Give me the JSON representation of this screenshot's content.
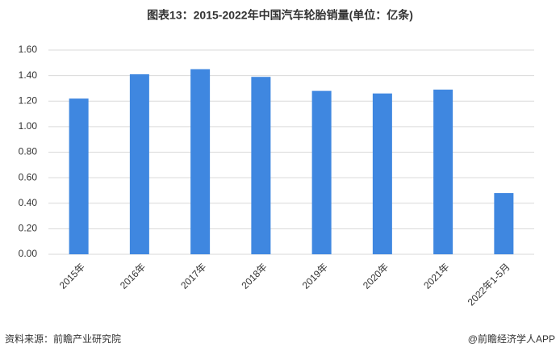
{
  "chart_data": {
    "type": "bar",
    "title": "图表13：2015-2022年中国汽车轮胎销量(单位：亿条)",
    "categories": [
      "2015年",
      "2016年",
      "2017年",
      "2018年",
      "2019年",
      "2020年",
      "2021年",
      "2022年1-5月"
    ],
    "values": [
      1.22,
      1.41,
      1.45,
      1.39,
      1.28,
      1.26,
      1.29,
      0.48
    ],
    "color": "#3f87e0",
    "ylim": [
      0,
      1.6
    ],
    "yticks": [
      {
        "value": 0,
        "label": "0.00"
      },
      {
        "value": 0.2,
        "label": "0.20"
      },
      {
        "value": 0.4,
        "label": "0.40"
      },
      {
        "value": 0.6,
        "label": "0.60"
      },
      {
        "value": 0.8,
        "label": "0.80"
      },
      {
        "value": 1.0,
        "label": "1.00"
      },
      {
        "value": 1.2,
        "label": "1.20"
      },
      {
        "value": 1.4,
        "label": "1.40"
      },
      {
        "value": 1.6,
        "label": "1.60"
      }
    ],
    "grid": true,
    "source": "资料来源：前瞻产业研究院",
    "credit": "@前瞻经济学人APP"
  }
}
